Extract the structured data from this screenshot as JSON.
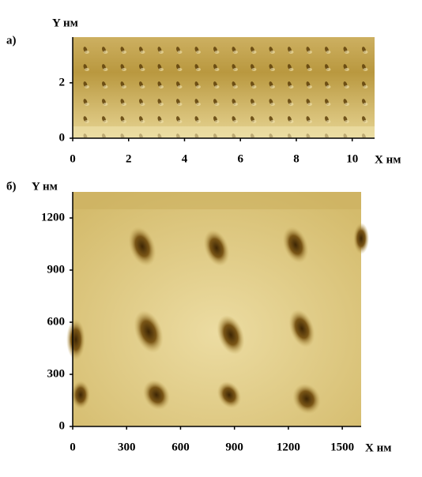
{
  "chart_data": [
    {
      "type": "image",
      "panel_label": "а)",
      "xlabel": "X нм",
      "ylabel": "Y нм",
      "xlim": [
        0,
        10.8
      ],
      "ylim": [
        0,
        3.65
      ],
      "xticks": [
        0,
        2,
        4,
        6,
        8,
        10
      ],
      "yticks": [
        0,
        2
      ]
    },
    {
      "type": "image",
      "panel_label": "б)",
      "xlabel": "X нм",
      "ylabel": "Y нм",
      "xlim": [
        0,
        1605
      ],
      "ylim": [
        0,
        1350
      ],
      "xticks": [
        0,
        300,
        600,
        900,
        1200,
        1500
      ],
      "yticks": [
        0,
        300,
        600,
        900,
        1200
      ]
    }
  ]
}
